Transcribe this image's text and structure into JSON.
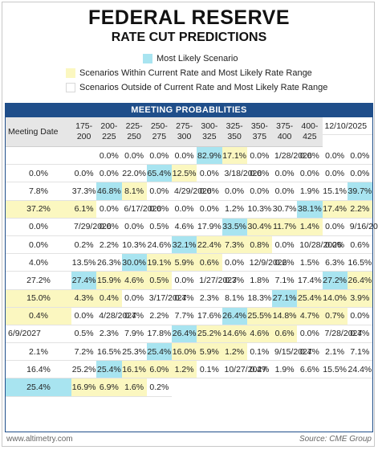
{
  "header": {
    "title": "FEDERAL RESERVE",
    "subtitle": "RATE CUT PREDICTIONS"
  },
  "legend": [
    {
      "label": "Most Likely Scenario",
      "color": "#a8e4f0"
    },
    {
      "label": "Scenarios Within Current Rate and Most Likely Rate Range",
      "color": "#fbf7c0"
    },
    {
      "label": "Scenarios Outside of Current Rate and Most Likely Rate Range",
      "color": "#ffffff"
    }
  ],
  "table_title": "MEETING PROBABILITIES",
  "footer": {
    "left": "www.altimetry.com",
    "right": "Source: CME Group"
  },
  "chart_data": {
    "type": "table",
    "title": "MEETING PROBABILITIES",
    "columns": [
      "Meeting Date",
      "175-200",
      "200-225",
      "225-250",
      "250-275",
      "275-300",
      "300-325",
      "325-350",
      "350-375",
      "375-400",
      "400-425"
    ],
    "header_lines": [
      [
        "Meeting Date"
      ],
      [
        "175-",
        "200"
      ],
      [
        "200-",
        "225"
      ],
      [
        "225-",
        "250"
      ],
      [
        "250-",
        "275"
      ],
      [
        "275-",
        "300"
      ],
      [
        "300-",
        "325"
      ],
      [
        "325-",
        "350"
      ],
      [
        "350-",
        "375"
      ],
      [
        "375-",
        "400"
      ],
      [
        "400-",
        "425"
      ]
    ],
    "rows": [
      {
        "date": "12/10/2025",
        "values": [
          "",
          "",
          "",
          "0.0%",
          "0.0%",
          "0.0%",
          "0.0%",
          "82.9%",
          "17.1%",
          "0.0%"
        ],
        "shading": [
          "",
          "",
          "",
          "",
          "",
          "",
          "",
          "b",
          "y",
          ""
        ]
      },
      {
        "date": "1/28/2026",
        "values": [
          "0.0%",
          "0.0%",
          "0.0%",
          "0.0%",
          "0.0%",
          "0.0%",
          "22.0%",
          "65.4%",
          "12.5%",
          "0.0%"
        ],
        "shading": [
          "",
          "",
          "",
          "",
          "",
          "",
          "",
          "b",
          "y",
          ""
        ]
      },
      {
        "date": "3/18/2026",
        "values": [
          "0.0%",
          "0.0%",
          "0.0%",
          "0.0%",
          "0.0%",
          "7.8%",
          "37.3%",
          "46.8%",
          "8.1%",
          "0.0%"
        ],
        "shading": [
          "",
          "",
          "",
          "",
          "",
          "",
          "",
          "b",
          "y",
          ""
        ]
      },
      {
        "date": "4/29/2026",
        "values": [
          "0.0%",
          "0.0%",
          "0.0%",
          "0.0%",
          "1.9%",
          "15.1%",
          "39.7%",
          "37.2%",
          "6.1%",
          "0.0%"
        ],
        "shading": [
          "",
          "",
          "",
          "",
          "",
          "",
          "b",
          "y",
          "y",
          ""
        ]
      },
      {
        "date": "6/17/2026",
        "values": [
          "0.0%",
          "0.0%",
          "0.0%",
          "1.2%",
          "10.3%",
          "30.7%",
          "38.1%",
          "17.4%",
          "2.2%",
          "0.0%"
        ],
        "shading": [
          "",
          "",
          "",
          "",
          "",
          "",
          "b",
          "y",
          "y",
          ""
        ]
      },
      {
        "date": "7/29/2026",
        "values": [
          "0.0%",
          "0.0%",
          "0.5%",
          "4.6%",
          "17.9%",
          "33.5%",
          "30.4%",
          "11.7%",
          "1.4%",
          "0.0%"
        ],
        "shading": [
          "",
          "",
          "",
          "",
          "",
          "b",
          "y",
          "y",
          "y",
          ""
        ]
      },
      {
        "date": "9/16/2026",
        "values": [
          "0.0%",
          "0.2%",
          "2.2%",
          "10.3%",
          "24.6%",
          "32.1%",
          "22.4%",
          "7.3%",
          "0.8%",
          "0.0%"
        ],
        "shading": [
          "",
          "",
          "",
          "",
          "",
          "b",
          "y",
          "y",
          "y",
          ""
        ]
      },
      {
        "date": "10/28/2026",
        "values": [
          "0.0%",
          "0.6%",
          "4.0%",
          "13.5%",
          "26.3%",
          "30.0%",
          "19.1%",
          "5.9%",
          "0.6%",
          "0.0%"
        ],
        "shading": [
          "",
          "",
          "",
          "",
          "",
          "b",
          "y",
          "y",
          "y",
          ""
        ]
      },
      {
        "date": "12/9/2026",
        "values": [
          "0.2%",
          "1.5%",
          "6.3%",
          "16.5%",
          "27.2%",
          "27.4%",
          "15.9%",
          "4.6%",
          "0.5%",
          "0.0%"
        ],
        "shading": [
          "",
          "",
          "",
          "",
          "",
          "b",
          "y",
          "y",
          "y",
          ""
        ]
      },
      {
        "date": "1/27/2027",
        "values": [
          "0.3%",
          "1.8%",
          "7.1%",
          "17.4%",
          "27.2%",
          "26.4%",
          "15.0%",
          "4.3%",
          "0.4%",
          "0.0%"
        ],
        "shading": [
          "",
          "",
          "",
          "",
          "b",
          "y",
          "y",
          "y",
          "y",
          ""
        ]
      },
      {
        "date": "3/17/2027",
        "values": [
          "0.4%",
          "2.3%",
          "8.1%",
          "18.3%",
          "27.1%",
          "25.4%",
          "14.0%",
          "3.9%",
          "0.4%",
          "0.0%"
        ],
        "shading": [
          "",
          "",
          "",
          "",
          "b",
          "y",
          "y",
          "y",
          "y",
          ""
        ]
      },
      {
        "date": "4/28/2027",
        "values": [
          "0.4%",
          "2.2%",
          "7.7%",
          "17.6%",
          "26.4%",
          "25.5%",
          "14.8%",
          "4.7%",
          "0.7%",
          "0.0%"
        ],
        "shading": [
          "",
          "",
          "",
          "",
          "b",
          "y",
          "y",
          "y",
          "y",
          ""
        ]
      },
      {
        "date": "6/9/2027",
        "values": [
          "0.5%",
          "2.3%",
          "7.9%",
          "17.8%",
          "26.4%",
          "25.2%",
          "14.6%",
          "4.6%",
          "0.6%",
          "0.0%"
        ],
        "shading": [
          "",
          "",
          "",
          "",
          "b",
          "y",
          "y",
          "y",
          "y",
          ""
        ]
      },
      {
        "date": "7/28/2027",
        "values": [
          "0.4%",
          "2.1%",
          "7.2%",
          "16.5%",
          "25.3%",
          "25.4%",
          "16.0%",
          "5.9%",
          "1.2%",
          "0.1%"
        ],
        "shading": [
          "",
          "",
          "",
          "",
          "",
          "b",
          "y",
          "y",
          "y",
          ""
        ]
      },
      {
        "date": "9/15/2027",
        "values": [
          "0.4%",
          "2.1%",
          "7.1%",
          "16.4%",
          "25.2%",
          "25.4%",
          "16.1%",
          "6.0%",
          "1.2%",
          "0.1%"
        ],
        "shading": [
          "",
          "",
          "",
          "",
          "",
          "b",
          "y",
          "y",
          "y",
          ""
        ]
      },
      {
        "date": "10/27/2027",
        "values": [
          "0.4%",
          "1.9%",
          "6.6%",
          "15.5%",
          "24.4%",
          "25.4%",
          "16.9%",
          "6.9%",
          "1.6%",
          "0.2%"
        ],
        "shading": [
          "",
          "",
          "",
          "",
          "",
          "b",
          "y",
          "y",
          "y",
          ""
        ]
      }
    ]
  }
}
